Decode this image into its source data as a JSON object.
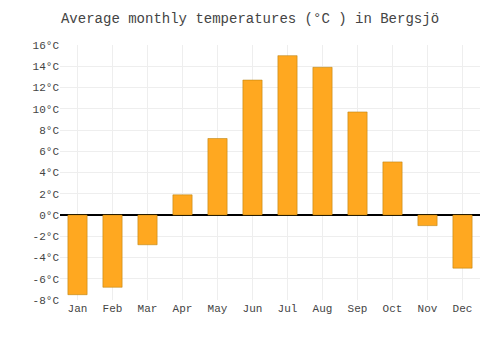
{
  "chart_data": {
    "type": "bar",
    "title": "Average monthly temperatures (°C ) in Bergsjö",
    "categories": [
      "Jan",
      "Feb",
      "Mar",
      "Apr",
      "May",
      "Jun",
      "Jul",
      "Aug",
      "Sep",
      "Oct",
      "Nov",
      "Dec"
    ],
    "values": [
      -7.5,
      -6.8,
      -2.8,
      1.9,
      7.2,
      12.7,
      15.0,
      13.9,
      9.7,
      5.0,
      -1.0,
      -5.0
    ],
    "color": "#FFA820",
    "ylim": [
      -8,
      16
    ],
    "yticks": [
      {
        "value": -8,
        "label": "-8°C"
      },
      {
        "value": -6,
        "label": "-6°C"
      },
      {
        "value": -4,
        "label": "-4°C"
      },
      {
        "value": -2,
        "label": "-2°C"
      },
      {
        "value": 0,
        "label": "0°C"
      },
      {
        "value": 2,
        "label": "2°C"
      },
      {
        "value": 4,
        "label": "4°C"
      },
      {
        "value": 6,
        "label": "6°C"
      },
      {
        "value": 8,
        "label": "8°C"
      },
      {
        "value": 10,
        "label": "10°C"
      },
      {
        "value": 12,
        "label": "12°C"
      },
      {
        "value": 14,
        "label": "14°C"
      },
      {
        "value": 16,
        "label": "16°C"
      }
    ],
    "grid": true
  }
}
